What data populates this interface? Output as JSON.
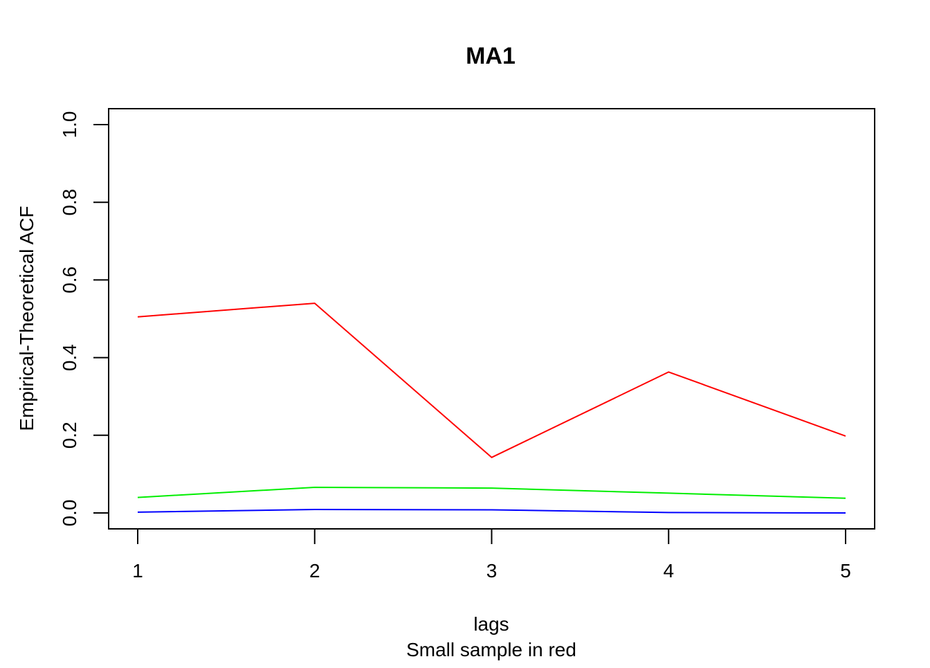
{
  "chart_data": {
    "type": "line",
    "title": "MA1",
    "xlabel": "lags",
    "subtitle": "Small sample in red",
    "ylabel": "Empirical-Theoretical ACF",
    "x": [
      1,
      2,
      3,
      4,
      5
    ],
    "x_ticks": [
      "1",
      "2",
      "3",
      "4",
      "5"
    ],
    "y_ticks": [
      "0.0",
      "0.2",
      "0.4",
      "0.6",
      "0.8",
      "1.0"
    ],
    "xlim": [
      1,
      5
    ],
    "ylim": [
      0,
      1
    ],
    "grid": false,
    "series": [
      {
        "color": "#ff0000",
        "values": [
          0.505,
          0.54,
          0.143,
          0.363,
          0.198
        ]
      },
      {
        "color": "#00ee00",
        "values": [
          0.04,
          0.066,
          0.064,
          0.051,
          0.038
        ]
      },
      {
        "color": "#0000ff",
        "values": [
          0.002,
          0.009,
          0.008,
          0.001,
          0.0
        ]
      }
    ]
  }
}
